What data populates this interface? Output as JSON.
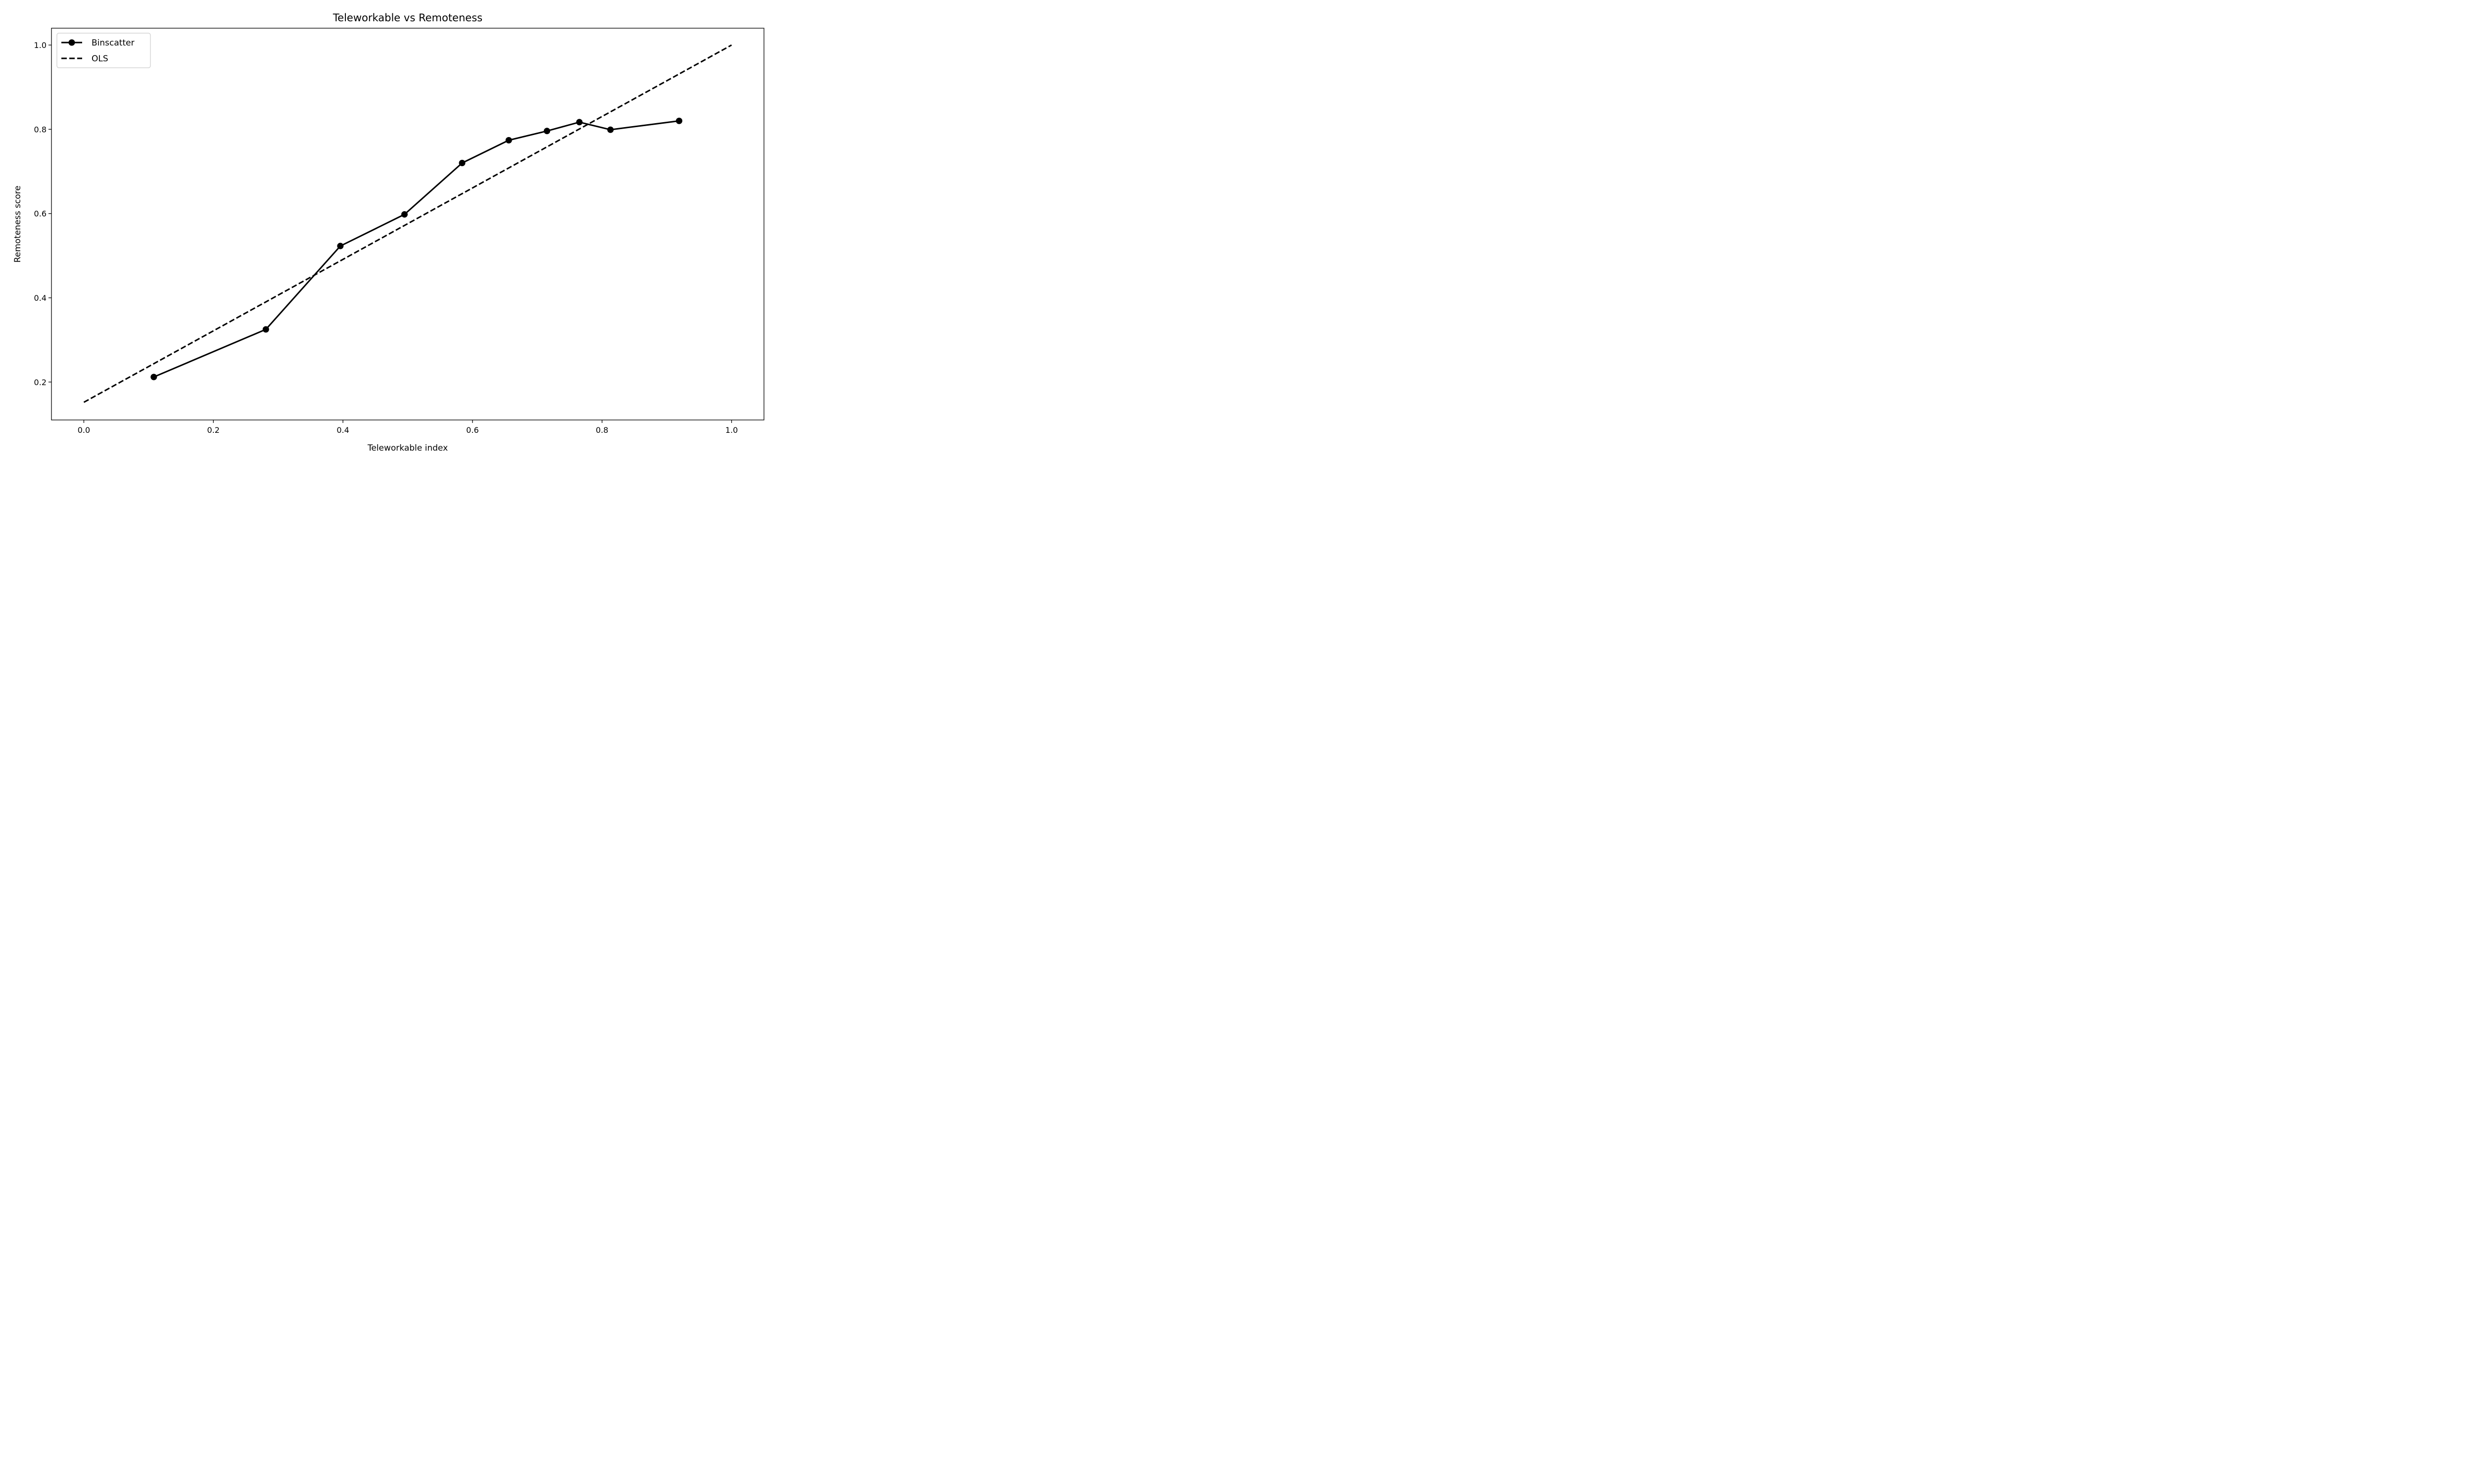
{
  "chart_data": {
    "type": "line",
    "title": "Teleworkable vs Remoteness",
    "xlabel": "Teleworkable index",
    "ylabel": "Remoteness score",
    "xlim": [
      -0.05,
      1.05
    ],
    "ylim": [
      0.11,
      1.04
    ],
    "xticks": [
      0.0,
      0.2,
      0.4,
      0.6,
      0.8,
      1.0
    ],
    "xtick_labels": [
      "0.0",
      "0.2",
      "0.4",
      "0.6",
      "0.8",
      "1.0"
    ],
    "yticks": [
      0.2,
      0.4,
      0.6,
      0.8,
      1.0
    ],
    "ytick_labels": [
      "0.2",
      "0.4",
      "0.6",
      "0.8",
      "1.0"
    ],
    "grid": false,
    "legend_position": "top-left",
    "series": [
      {
        "name": "Binscatter",
        "style": "solid-with-markers",
        "color": "#000000",
        "x": [
          0.108,
          0.281,
          0.396,
          0.495,
          0.584,
          0.656,
          0.715,
          0.765,
          0.813,
          0.919
        ],
        "y": [
          0.212,
          0.325,
          0.523,
          0.598,
          0.72,
          0.774,
          0.796,
          0.817,
          0.799,
          0.82
        ]
      },
      {
        "name": "OLS",
        "style": "dashed",
        "color": "#000000",
        "x": [
          0.0,
          1.0
        ],
        "y": [
          0.152,
          1.0
        ]
      }
    ]
  }
}
